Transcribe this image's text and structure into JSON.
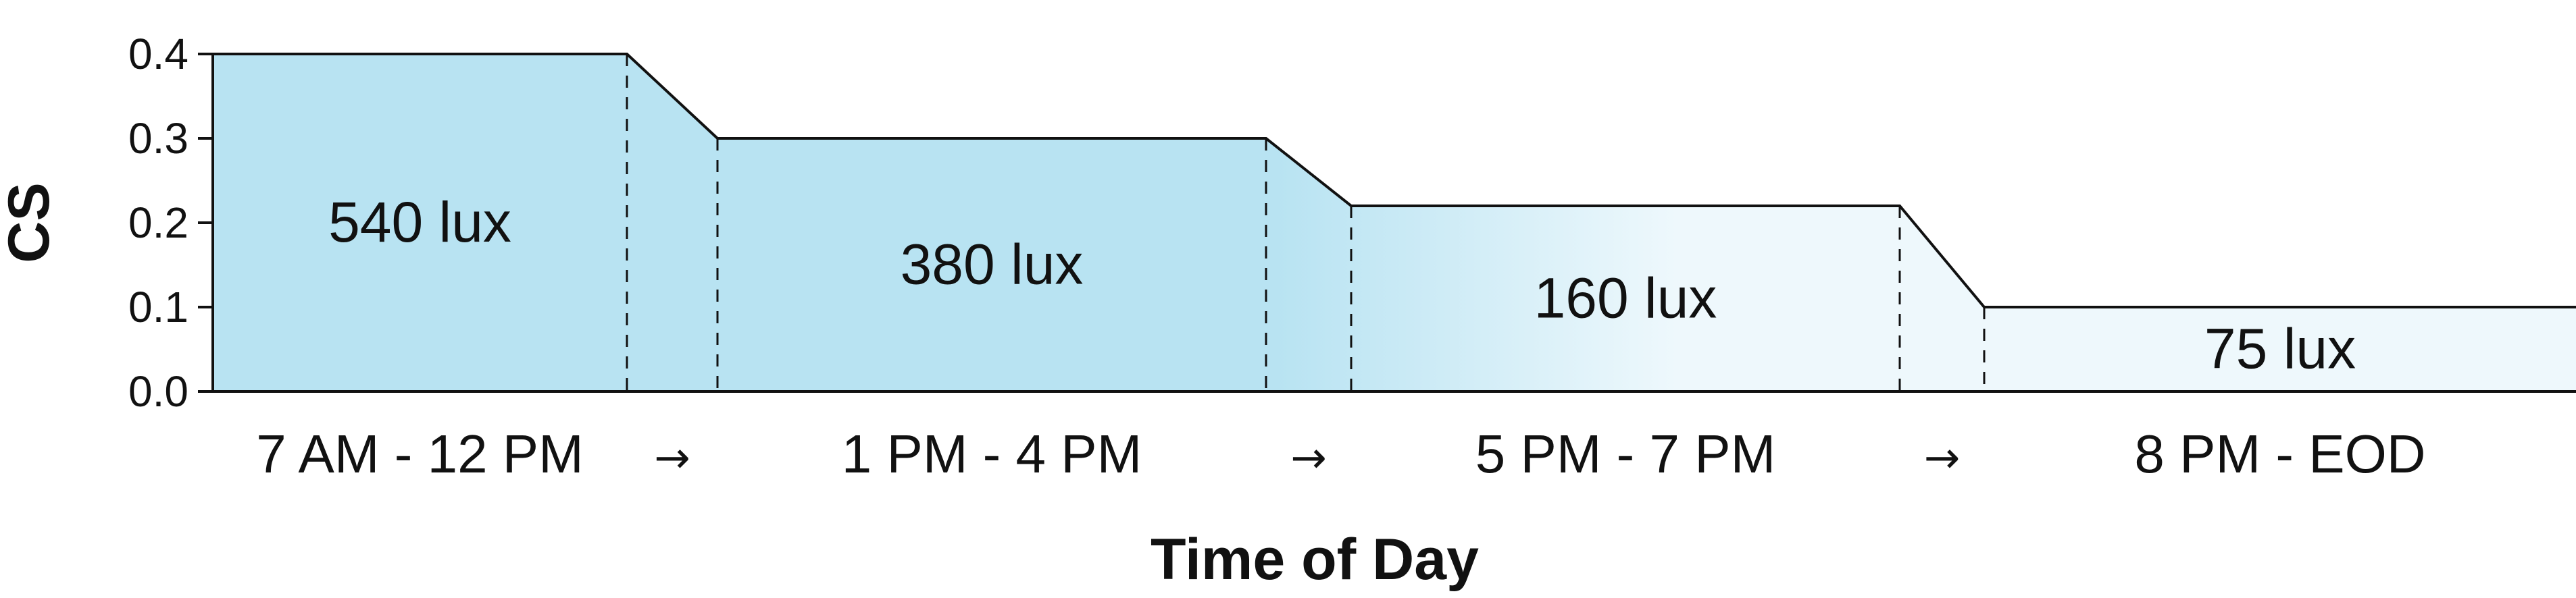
{
  "chart_data": {
    "type": "area",
    "xlabel": "Time of Day",
    "ylabel": "CS",
    "ylim": [
      0,
      0.4
    ],
    "yticks": [
      "0.0",
      "0.1",
      "0.2",
      "0.3",
      "0.4"
    ],
    "grid": false,
    "segments": [
      {
        "period": "7 AM - 12 PM",
        "cs": 0.4,
        "lux_label": "540 lux"
      },
      {
        "period": "1 PM - 4 PM",
        "cs": 0.3,
        "lux_label": "380 lux"
      },
      {
        "period": "5 PM - 7 PM",
        "cs": 0.22,
        "lux_label": "160 lux"
      },
      {
        "period": "8 PM - EOD",
        "cs": 0.1,
        "lux_label": "75 lux"
      }
    ],
    "transition_symbol": "→",
    "colors": {
      "fill_strong": "#b8e3f2",
      "fill_light": "#eef8fc",
      "line": "#111111"
    }
  }
}
